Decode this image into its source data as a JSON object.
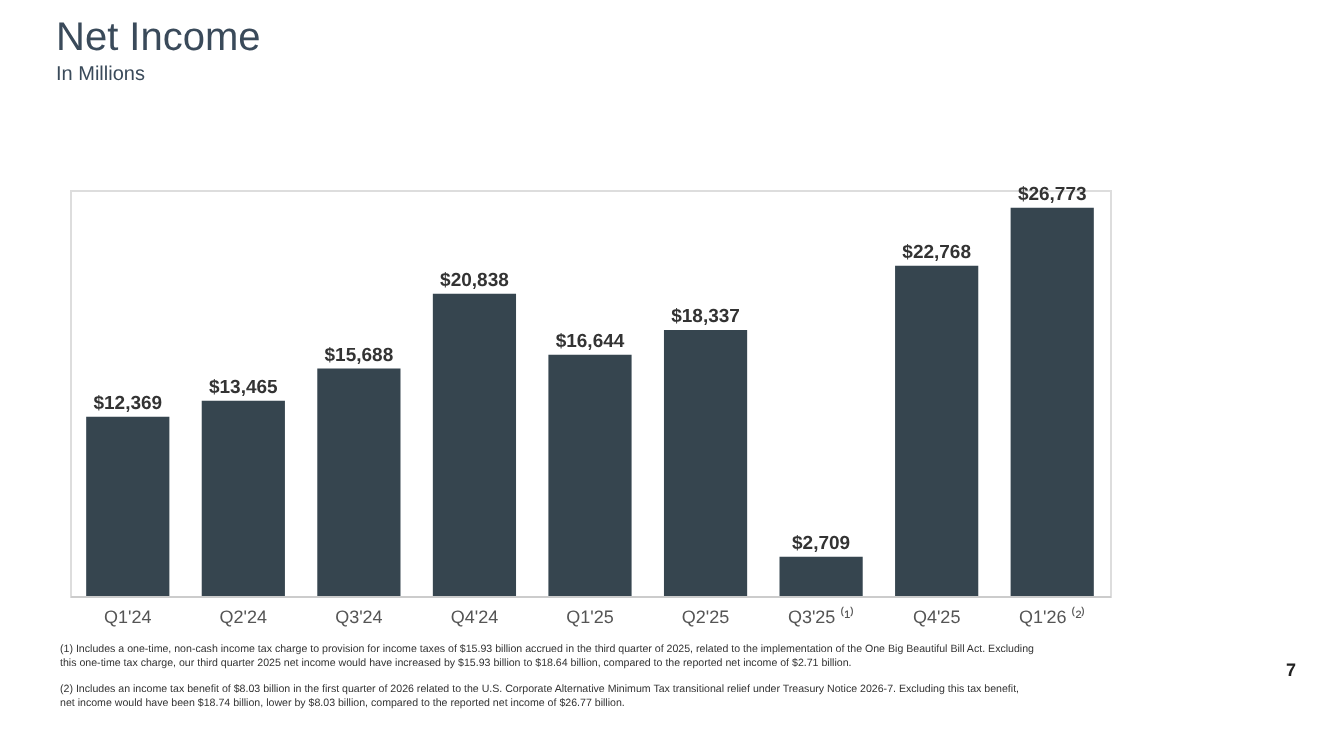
{
  "chart_data": {
    "type": "bar",
    "title": "Net Income",
    "subtitle": "In Millions",
    "categories": [
      "Q1'24",
      "Q2'24",
      "Q3'24",
      "Q4'24",
      "Q1'25",
      "Q2'25",
      "Q3'25 ⁽¹⁾",
      "Q4'25",
      "Q1'26 ⁽²⁾"
    ],
    "values": [
      12369,
      13465,
      15688,
      20838,
      16644,
      18337,
      2709,
      22768,
      26773
    ],
    "value_labels": [
      "$12,369",
      "$13,465",
      "$15,688",
      "$20,838",
      "$16,644",
      "$18,337",
      "$2,709",
      "$22,768",
      "$26,773"
    ],
    "color": "#36454f",
    "grid": false,
    "tick_labels": "x",
    "annotations": [
      "(1) Includes a one-time, non-cash income tax charge to provision for income taxes of $15.93 billion accrued in the third quarter of 2025, related to the implementation of the One Big Beautiful Bill Act. Excluding this one-time tax charge, our third quarter 2025 net income would have increased by $15.93 billion to $18.64 billion, compared to the reported net income of $2.71 billion.",
      "(2) Includes an income tax benefit of $8.03 billion in the first quarter of 2026 related to the U.S. Corporate Alternative Minimum Tax transitional relief under Treasury Notice 2026-7. Excluding this tax benefit, net income would have been $18.74 billion, lower by $8.03 billion, compared to the reported net income of $26.77 billion.",
      "7"
    ]
  }
}
